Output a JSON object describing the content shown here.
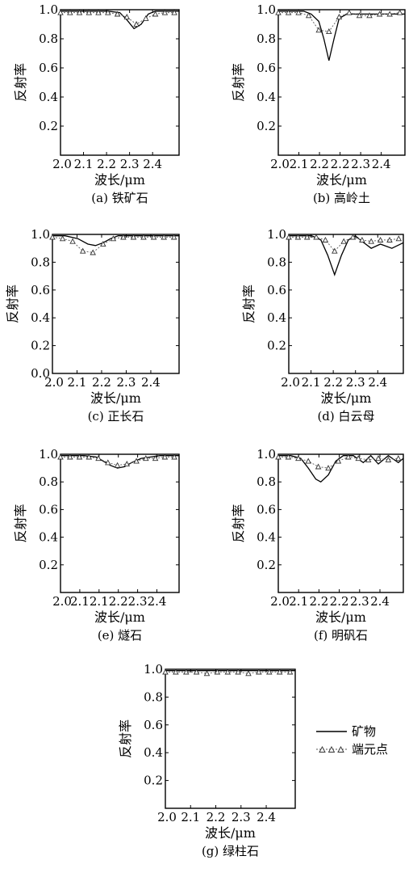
{
  "legend": {
    "items": [
      {
        "label": "矿物",
        "style": "solid"
      },
      {
        "label": "端元点",
        "style": "dotted-triangle"
      }
    ]
  },
  "chart_data": [
    {
      "type": "line",
      "caption": "(a) 铁矿石",
      "xlabel": "波长/μm",
      "ylabel": "反射率",
      "xlim": [
        2.0,
        2.5
      ],
      "ylim": [
        0.0,
        1.0
      ],
      "xticks": [
        "2.0",
        "2.1",
        "2.2",
        "2.3",
        "2.4"
      ],
      "yticks": [
        "1.0",
        "0.8",
        "0.6",
        "0.4",
        "0.2"
      ],
      "series": [
        {
          "name": "矿物",
          "x": [
            2.0,
            2.05,
            2.1,
            2.15,
            2.2,
            2.25,
            2.28,
            2.31,
            2.34,
            2.37,
            2.4,
            2.45,
            2.5
          ],
          "y": [
            0.99,
            0.99,
            0.99,
            0.99,
            0.99,
            0.98,
            0.93,
            0.87,
            0.9,
            0.97,
            0.99,
            0.99,
            0.99
          ]
        },
        {
          "name": "端元点",
          "x": [
            2.0,
            2.04,
            2.08,
            2.12,
            2.16,
            2.2,
            2.24,
            2.28,
            2.32,
            2.36,
            2.4,
            2.44,
            2.48
          ],
          "y": [
            0.98,
            0.98,
            0.98,
            0.98,
            0.98,
            0.98,
            0.97,
            0.95,
            0.9,
            0.94,
            0.97,
            0.98,
            0.98
          ]
        }
      ]
    },
    {
      "type": "line",
      "caption": "(b) 高岭土",
      "xlabel": "波长/μm",
      "ylabel": "反射率",
      "xlim": [
        2.0,
        2.5
      ],
      "ylim": [
        0.0,
        1.0
      ],
      "xticks": [
        "2.0",
        "2.1",
        "2.2",
        "2.2",
        "2.3",
        "2.4"
      ],
      "yticks": [
        "1.0",
        "0.8",
        "0.6",
        "0.4",
        "0.2"
      ],
      "series": [
        {
          "name": "矿物",
          "x": [
            2.0,
            2.05,
            2.1,
            2.13,
            2.16,
            2.18,
            2.2,
            2.22,
            2.24,
            2.27,
            2.3,
            2.35,
            2.4,
            2.45,
            2.5
          ],
          "y": [
            0.99,
            0.99,
            0.99,
            0.97,
            0.92,
            0.8,
            0.65,
            0.8,
            0.94,
            0.97,
            0.97,
            0.97,
            0.97,
            0.97,
            0.97
          ]
        },
        {
          "name": "端元点",
          "x": [
            2.0,
            2.04,
            2.08,
            2.12,
            2.16,
            2.2,
            2.24,
            2.28,
            2.32,
            2.36,
            2.4,
            2.44,
            2.48
          ],
          "y": [
            0.98,
            0.98,
            0.98,
            0.96,
            0.86,
            0.85,
            0.95,
            0.98,
            0.96,
            0.96,
            0.97,
            0.97,
            0.98
          ]
        }
      ]
    },
    {
      "type": "line",
      "caption": "(c) 正长石",
      "xlabel": "波长/μm",
      "ylabel": "反射率",
      "xlim": [
        2.0,
        2.5
      ],
      "ylim": [
        0.0,
        1.0
      ],
      "xticks": [
        "2.0",
        "2.1",
        "2.2",
        "2.3",
        "2.4"
      ],
      "yticks": [
        "1.0",
        "0.8",
        "0.6",
        "0.4",
        "0.2",
        "0.0"
      ],
      "series": [
        {
          "name": "矿物",
          "x": [
            2.0,
            2.05,
            2.1,
            2.14,
            2.17,
            2.2,
            2.23,
            2.26,
            2.3,
            2.35,
            2.4,
            2.45,
            2.5
          ],
          "y": [
            0.99,
            0.99,
            0.97,
            0.93,
            0.92,
            0.94,
            0.97,
            0.99,
            0.99,
            0.99,
            0.99,
            0.99,
            0.99
          ]
        },
        {
          "name": "端元点",
          "x": [
            2.0,
            2.04,
            2.08,
            2.12,
            2.16,
            2.2,
            2.24,
            2.28,
            2.32,
            2.36,
            2.4,
            2.44,
            2.48
          ],
          "y": [
            0.98,
            0.97,
            0.95,
            0.88,
            0.87,
            0.93,
            0.97,
            0.98,
            0.98,
            0.98,
            0.98,
            0.98,
            0.98
          ]
        }
      ]
    },
    {
      "type": "line",
      "caption": "(d) 白云母",
      "xlabel": "波长/μm",
      "ylabel": "反射率",
      "xlim": [
        2.0,
        2.5
      ],
      "ylim": [
        0.0,
        1.0
      ],
      "xticks": [
        "2.0",
        "2.1",
        "2.2",
        "2.3",
        "2.4"
      ],
      "yticks": [
        "1.0",
        "0.8",
        "0.6",
        "0.4",
        "0.2"
      ],
      "series": [
        {
          "name": "矿物",
          "x": [
            2.0,
            2.05,
            2.1,
            2.14,
            2.17,
            2.2,
            2.23,
            2.26,
            2.29,
            2.32,
            2.36,
            2.4,
            2.45,
            2.5
          ],
          "y": [
            0.99,
            0.99,
            0.99,
            0.96,
            0.85,
            0.71,
            0.85,
            0.96,
            0.99,
            0.95,
            0.9,
            0.93,
            0.9,
            0.94
          ]
        },
        {
          "name": "端元点",
          "x": [
            2.0,
            2.04,
            2.08,
            2.12,
            2.16,
            2.2,
            2.24,
            2.28,
            2.32,
            2.36,
            2.4,
            2.44,
            2.48
          ],
          "y": [
            0.98,
            0.98,
            0.98,
            0.98,
            0.96,
            0.88,
            0.95,
            0.98,
            0.96,
            0.95,
            0.96,
            0.96,
            0.97
          ]
        }
      ]
    },
    {
      "type": "line",
      "caption": "(e) 燧石",
      "xlabel": "波长/μm",
      "ylabel": "反射率",
      "xlim": [
        2.0,
        2.5
      ],
      "ylim": [
        0.0,
        1.0
      ],
      "xticks": [
        "2.0",
        "2.1",
        "2.1",
        "2.2",
        "2.3",
        "2.4"
      ],
      "yticks": [
        "1.0",
        "0.8",
        "0.6",
        "0.4",
        "0.2"
      ],
      "series": [
        {
          "name": "矿物",
          "x": [
            2.0,
            2.05,
            2.1,
            2.15,
            2.18,
            2.21,
            2.24,
            2.27,
            2.3,
            2.34,
            2.38,
            2.42,
            2.46,
            2.5
          ],
          "y": [
            0.99,
            0.99,
            0.99,
            0.98,
            0.95,
            0.92,
            0.9,
            0.91,
            0.94,
            0.97,
            0.98,
            0.99,
            0.99,
            0.99
          ]
        },
        {
          "name": "端元点",
          "x": [
            2.0,
            2.04,
            2.08,
            2.12,
            2.16,
            2.2,
            2.24,
            2.28,
            2.32,
            2.36,
            2.4,
            2.44,
            2.48
          ],
          "y": [
            0.98,
            0.98,
            0.98,
            0.98,
            0.97,
            0.94,
            0.92,
            0.93,
            0.95,
            0.97,
            0.97,
            0.98,
            0.98
          ]
        }
      ]
    },
    {
      "type": "line",
      "caption": "(f) 明矾石",
      "xlabel": "波长/μm",
      "ylabel": "反射率",
      "xlim": [
        2.0,
        2.5
      ],
      "ylim": [
        0.0,
        1.0
      ],
      "xticks": [
        "2.0",
        "2.1",
        "2.2",
        "2.2",
        "2.3",
        "2.4"
      ],
      "yticks": [
        "1.0",
        "0.8",
        "0.6",
        "0.4",
        "0.2"
      ],
      "series": [
        {
          "name": "矿物",
          "x": [
            2.0,
            2.05,
            2.09,
            2.12,
            2.15,
            2.17,
            2.2,
            2.23,
            2.26,
            2.3,
            2.34,
            2.37,
            2.4,
            2.44,
            2.48,
            2.5
          ],
          "y": [
            0.99,
            0.99,
            0.97,
            0.9,
            0.82,
            0.8,
            0.85,
            0.95,
            0.99,
            0.99,
            0.94,
            0.99,
            0.93,
            0.99,
            0.94,
            0.97
          ]
        },
        {
          "name": "端元点",
          "x": [
            2.0,
            2.04,
            2.08,
            2.12,
            2.16,
            2.2,
            2.24,
            2.28,
            2.32,
            2.36,
            2.4,
            2.44,
            2.48
          ],
          "y": [
            0.98,
            0.98,
            0.97,
            0.95,
            0.91,
            0.9,
            0.95,
            0.98,
            0.97,
            0.96,
            0.97,
            0.96,
            0.97
          ]
        }
      ]
    },
    {
      "type": "line",
      "caption": "(g) 绿柱石",
      "xlabel": "波长/μm",
      "ylabel": "反射率",
      "xlim": [
        2.0,
        2.5
      ],
      "ylim": [
        0.0,
        1.0
      ],
      "xticks": [
        "2.0",
        "2.1",
        "2.2",
        "2.3",
        "2.4"
      ],
      "yticks": [
        "1.0",
        "0.8",
        "0.6",
        "0.4",
        "0.2"
      ],
      "series": [
        {
          "name": "矿物",
          "x": [
            2.0,
            2.1,
            2.2,
            2.3,
            2.4,
            2.5
          ],
          "y": [
            0.99,
            0.99,
            0.99,
            0.99,
            0.99,
            0.99
          ]
        },
        {
          "name": "端元点",
          "x": [
            2.0,
            2.04,
            2.08,
            2.12,
            2.16,
            2.2,
            2.24,
            2.28,
            2.32,
            2.36,
            2.4,
            2.44,
            2.48
          ],
          "y": [
            0.98,
            0.98,
            0.98,
            0.98,
            0.97,
            0.98,
            0.98,
            0.98,
            0.97,
            0.98,
            0.98,
            0.98,
            0.98
          ]
        }
      ]
    }
  ]
}
